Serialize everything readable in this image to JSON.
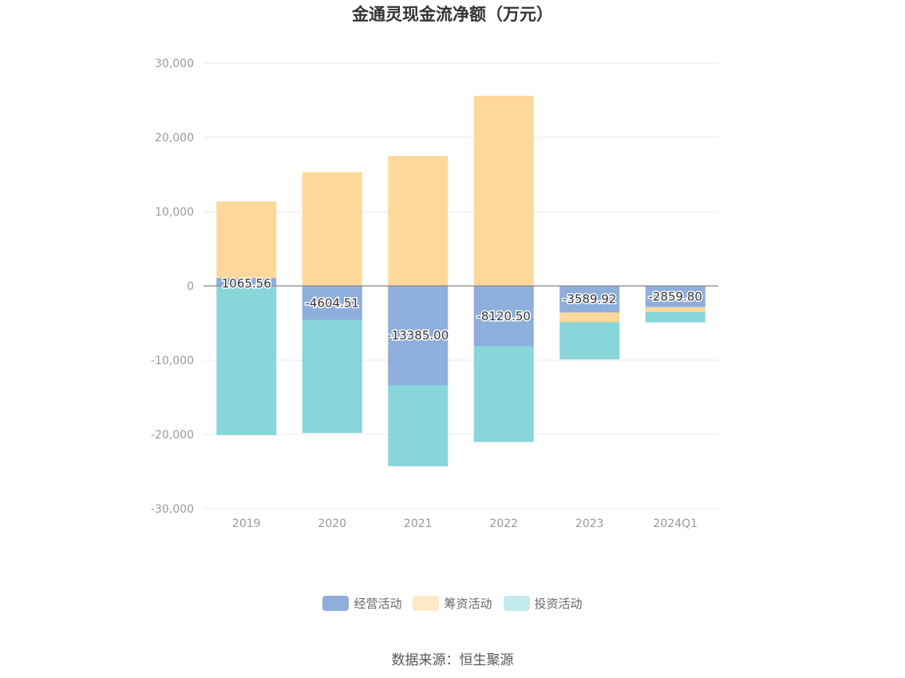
{
  "chart_data": {
    "type": "bar",
    "stacked": true,
    "title": "金通灵现金流净额（万元）",
    "categories": [
      "2019",
      "2020",
      "2021",
      "2022",
      "2023",
      "2024Q1"
    ],
    "ylim": [
      -30000,
      30000
    ],
    "yticks": [
      30000,
      20000,
      10000,
      0,
      -10000,
      -20000,
      -30000
    ],
    "ytick_labels": [
      "30,000",
      "20,000",
      "10,000",
      "0",
      "-10,000",
      "-20,000",
      "-30,000"
    ],
    "grid": true,
    "legend_position": "bottom",
    "series": [
      {
        "name": "经营活动",
        "color": "#8eaedc",
        "values": [
          1065.56,
          -4604.51,
          -13385.0,
          -8120.5,
          -3589.92,
          -2859.8
        ],
        "labels": [
          "1065.56",
          "-4604.51",
          "-13385.00",
          "-8120.50",
          "-3589.92",
          "-2859.80"
        ]
      },
      {
        "name": "筹资活动",
        "color": "#fed89b",
        "values": [
          10300,
          15300,
          17500,
          25600,
          -1300,
          -650
        ]
      },
      {
        "name": "投资活动",
        "color": "#88d5da",
        "values": [
          -20100,
          -15200,
          -10900,
          -12900,
          -5000,
          -1400
        ]
      }
    ]
  },
  "legend": {
    "items": [
      {
        "label": "经营活动",
        "color": "#8eaedc"
      },
      {
        "label": "筹资活动",
        "color": "#fee8c8"
      },
      {
        "label": "投资活动",
        "color": "#c3eaec"
      }
    ]
  },
  "source": "数据来源：恒生聚源"
}
